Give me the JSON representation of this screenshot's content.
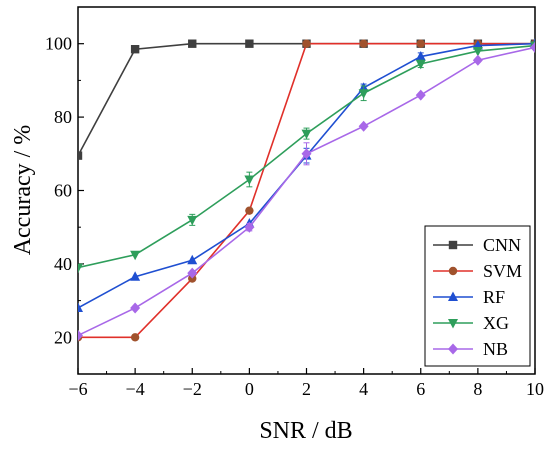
{
  "chart_data": {
    "type": "line",
    "xlabel": "SNR / dB",
    "ylabel": "Accuracy / %",
    "xlim": [
      -6,
      10
    ],
    "ylim": [
      10,
      110
    ],
    "xticks": [
      -6,
      -4,
      -2,
      0,
      2,
      4,
      6,
      8,
      10
    ],
    "xtick_labels": [
      "−6",
      "−4",
      "−2",
      "0",
      "2",
      "4",
      "6",
      "8",
      "10"
    ],
    "yticks": [
      20,
      40,
      60,
      80,
      100
    ],
    "ytick_labels": [
      "20",
      "40",
      "60",
      "80",
      "100"
    ],
    "grid": false,
    "legend_position": "bottom-right",
    "x": [
      -6,
      -4,
      -2,
      0,
      2,
      4,
      6,
      8,
      10
    ],
    "series": [
      {
        "name": "CNN",
        "color": "#3f3f3f",
        "marker": "square",
        "values": [
          69.5,
          98.5,
          100,
          100,
          100,
          100,
          100,
          100,
          100
        ],
        "errors": [
          0,
          0,
          0,
          0,
          0,
          0,
          0,
          0,
          0
        ]
      },
      {
        "name": "SVM",
        "color": "#a0522d",
        "marker": "circle",
        "values": [
          20,
          20,
          36,
          54.5,
          100,
          100,
          100,
          100,
          100
        ],
        "errors": [
          0,
          0,
          0,
          0,
          0,
          0,
          0,
          0,
          0
        ]
      },
      {
        "name": "RF",
        "color": "#1f4fd1",
        "marker": "triangle-up",
        "values": [
          28,
          36.5,
          41,
          51,
          69.5,
          88,
          96.5,
          99.5,
          100
        ],
        "errors": [
          0,
          0,
          0,
          0,
          2,
          1,
          1,
          0,
          0
        ]
      },
      {
        "name": "XG",
        "color": "#2e9e5b",
        "marker": "triangle-down",
        "values": [
          39,
          42.5,
          52,
          63,
          75.5,
          86.5,
          94.5,
          98,
          99.5
        ],
        "errors": [
          0,
          0,
          1.5,
          2,
          1.5,
          2,
          1,
          0,
          0
        ]
      },
      {
        "name": "NB",
        "color": "#a868e8",
        "marker": "diamond",
        "values": [
          20.5,
          28,
          37.5,
          50,
          70,
          77.5,
          86,
          95.5,
          99
        ],
        "errors": [
          0,
          0,
          0,
          1,
          3,
          0,
          0,
          0,
          0
        ]
      }
    ],
    "line_colors_override": {
      "SVM_line": "#e0302a"
    }
  }
}
